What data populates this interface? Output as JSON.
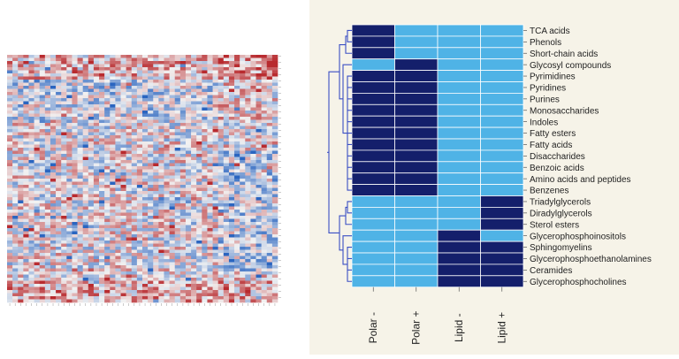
{
  "colors": {
    "panel_bg": "#f6f3e8",
    "present": "#141f6b",
    "absent": "#4fb3e6",
    "dendrogram": "#3b4fc4",
    "heat_low": "#2a65c0",
    "heat_mid": "#f2f2f2",
    "heat_high": "#b82a2e"
  },
  "chart_data": [
    {
      "type": "heatmap",
      "title": "",
      "description_kind": "clustered heatmap, blue (low) to red (high)",
      "rows": 80,
      "cols": 50,
      "value_range": [
        -1,
        1
      ],
      "seed": 7
    },
    {
      "type": "heatmap",
      "title": "",
      "columns": [
        "Polar -",
        "Polar +",
        "Lipid -",
        "Lipid +"
      ],
      "rows": [
        {
          "label": "TCA acids",
          "values": [
            1,
            0,
            0,
            0
          ]
        },
        {
          "label": "Phenols",
          "values": [
            1,
            0,
            0,
            0
          ]
        },
        {
          "label": "Short-chain acids",
          "values": [
            1,
            0,
            0,
            0
          ]
        },
        {
          "label": "Glycosyl compounds",
          "values": [
            0,
            1,
            0,
            0
          ]
        },
        {
          "label": "Pyrimidines",
          "values": [
            1,
            1,
            0,
            0
          ]
        },
        {
          "label": "Pyridines",
          "values": [
            1,
            1,
            0,
            0
          ]
        },
        {
          "label": "Purines",
          "values": [
            1,
            1,
            0,
            0
          ]
        },
        {
          "label": "Monosaccharides",
          "values": [
            1,
            1,
            0,
            0
          ]
        },
        {
          "label": "Indoles",
          "values": [
            1,
            1,
            0,
            0
          ]
        },
        {
          "label": "Fatty esters",
          "values": [
            1,
            1,
            0,
            0
          ]
        },
        {
          "label": "Fatty acids",
          "values": [
            1,
            1,
            0,
            0
          ]
        },
        {
          "label": "Disaccharides",
          "values": [
            1,
            1,
            0,
            0
          ]
        },
        {
          "label": "Benzoic acids",
          "values": [
            1,
            1,
            0,
            0
          ]
        },
        {
          "label": "Amino acids and peptides",
          "values": [
            1,
            1,
            0,
            0
          ]
        },
        {
          "label": "Benzenes",
          "values": [
            1,
            1,
            0,
            0
          ]
        },
        {
          "label": "Triadylglycerols",
          "values": [
            0,
            0,
            0,
            1
          ]
        },
        {
          "label": "Diradylglycerols",
          "values": [
            0,
            0,
            0,
            1
          ]
        },
        {
          "label": "Sterol esters",
          "values": [
            0,
            0,
            0,
            1
          ]
        },
        {
          "label": "Glycerophosphoinositols",
          "values": [
            0,
            0,
            1,
            0
          ]
        },
        {
          "label": "Sphingomyelins",
          "values": [
            0,
            0,
            1,
            1
          ]
        },
        {
          "label": "Glycerophosphoethanolamines",
          "values": [
            0,
            0,
            1,
            1
          ]
        },
        {
          "label": "Ceramides",
          "values": [
            0,
            0,
            1,
            1
          ]
        },
        {
          "label": "Glycerophosphocholines",
          "values": [
            0,
            0,
            1,
            1
          ]
        }
      ]
    }
  ]
}
